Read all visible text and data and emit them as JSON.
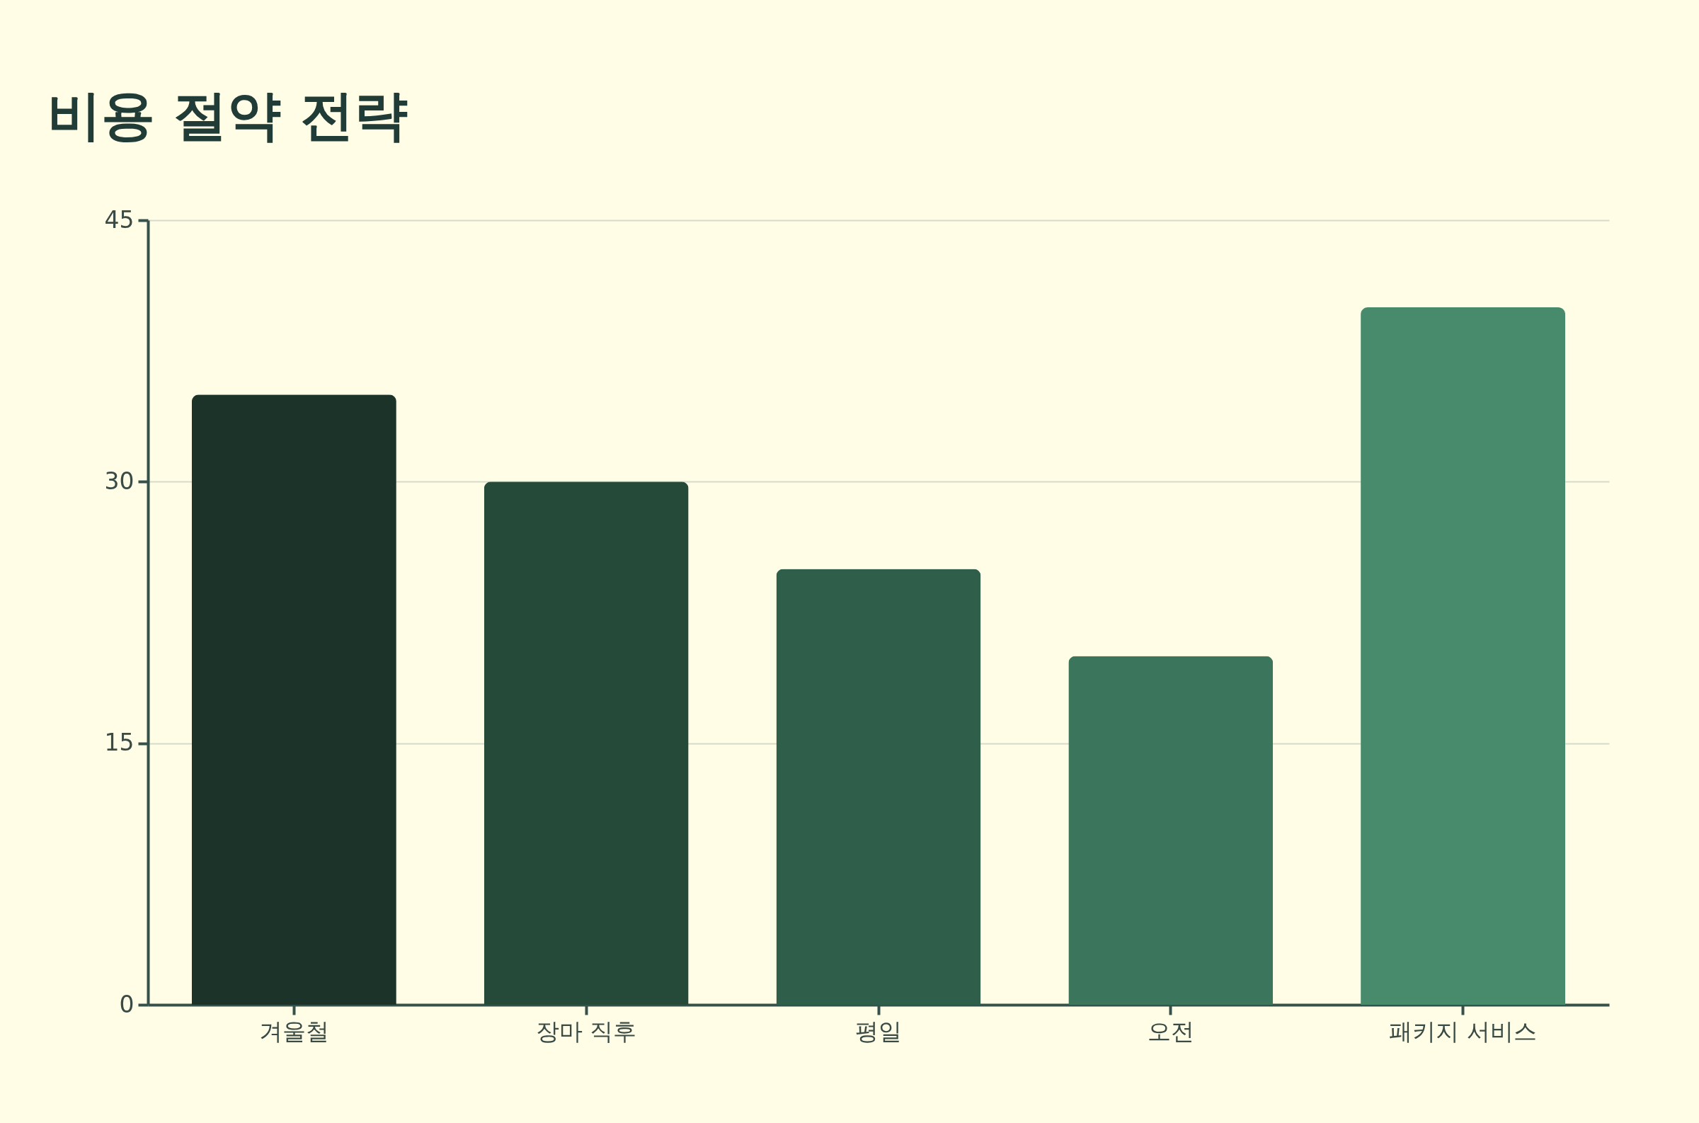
{
  "chart_data": {
    "type": "bar",
    "title": "비용 절약 전략",
    "categories": [
      "겨울철",
      "장마 직후",
      "평일",
      "오전",
      "패키지 서비스"
    ],
    "values": [
      35,
      30,
      25,
      20,
      40
    ],
    "colors": [
      "#1b3328",
      "#254a3a",
      "#2f5e4a",
      "#3b765c",
      "#478a6c"
    ],
    "ylim": [
      0,
      45
    ],
    "yticks": [
      0,
      15,
      30,
      45
    ],
    "grid": "y",
    "legend": false
  }
}
